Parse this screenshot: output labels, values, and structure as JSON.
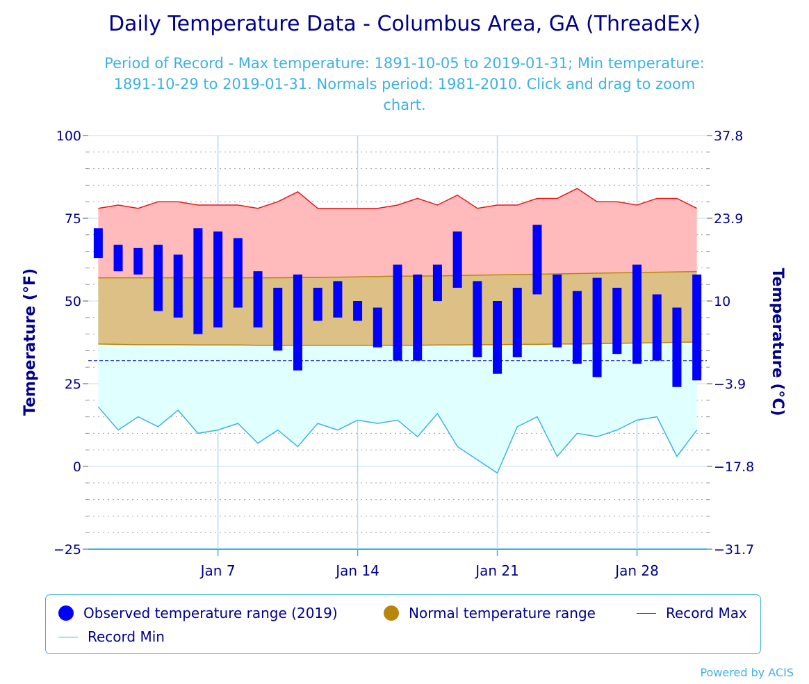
{
  "chart_data": {
    "type": "bar",
    "title": "Daily Temperature Data - Columbus Area, GA (ThreadEx)",
    "subtitle_lines": [
      "Period of Record - Max temperature: 1891-10-05 to 2019-01-31; Min temperature:",
      "1891-10-29 to 2019-01-31. Normals period: 1981-2010. Click and drag to zoom",
      "chart."
    ],
    "ylabel_left": "Temperature (°F)",
    "ylabel_right": "Temperature (°C)",
    "ylim": [
      -25,
      100
    ],
    "yticks_left": [
      100,
      75,
      50,
      25,
      0,
      -25
    ],
    "yticks_right_labels": [
      "37.8",
      "23.9",
      "10",
      "-3.9",
      "-17.8",
      "-31.7"
    ],
    "xlim_days": [
      0.5,
      31.5
    ],
    "x_ticks": [
      {
        "day": 7,
        "label": "Jan 7"
      },
      {
        "day": 14,
        "label": "Jan 14"
      },
      {
        "day": 21,
        "label": "Jan 21"
      },
      {
        "day": 28,
        "label": "Jan 28"
      }
    ],
    "freezing_line_f": 32,
    "grid": true,
    "legend_position": "bottom",
    "days": [
      1,
      2,
      3,
      4,
      5,
      6,
      7,
      8,
      9,
      10,
      11,
      12,
      13,
      14,
      15,
      16,
      17,
      18,
      19,
      20,
      21,
      22,
      23,
      24,
      25,
      26,
      27,
      28,
      29,
      30,
      31
    ],
    "record_max": [
      78,
      79,
      78,
      80,
      80,
      79,
      79,
      79,
      78,
      80,
      83,
      78,
      78,
      78,
      78,
      79,
      81,
      79,
      82,
      78,
      79,
      79,
      81,
      81,
      84,
      80,
      80,
      79,
      81,
      81,
      78
    ],
    "record_min": [
      18,
      11,
      15,
      12,
      17,
      10,
      11,
      13,
      7,
      11,
      6,
      13,
      11,
      14,
      13,
      14,
      9,
      16,
      6,
      2,
      -2,
      12,
      15,
      3,
      10,
      9,
      11,
      14,
      15,
      3,
      11
    ],
    "normal_max": [
      57,
      57,
      57,
      57,
      57,
      57,
      57,
      57,
      57,
      57,
      57.1,
      57.1,
      57.2,
      57.3,
      57.4,
      57.5,
      57.5,
      57.6,
      57.7,
      57.8,
      57.9,
      58,
      58.1,
      58.2,
      58.3,
      58.4,
      58.5,
      58.6,
      58.7,
      58.8,
      58.9
    ],
    "normal_min": [
      37,
      36.9,
      36.8,
      36.8,
      36.8,
      36.7,
      36.7,
      36.7,
      36.6,
      36.6,
      36.6,
      36.6,
      36.6,
      36.6,
      36.6,
      36.6,
      36.6,
      36.7,
      36.7,
      36.8,
      36.8,
      36.9,
      36.9,
      37,
      37,
      37.1,
      37.2,
      37.3,
      37.4,
      37.5,
      37.6
    ],
    "observed_max": [
      72,
      67,
      66,
      67,
      64,
      72,
      71,
      69,
      59,
      54,
      58,
      54,
      56,
      50,
      48,
      61,
      58,
      61,
      71,
      56,
      50,
      54,
      73,
      58,
      53,
      57,
      54,
      61,
      52,
      48,
      58
    ],
    "observed_min": [
      63,
      59,
      58,
      47,
      45,
      40,
      42,
      48,
      42,
      35,
      29,
      44,
      45,
      44,
      36,
      32,
      32,
      50,
      54,
      33,
      28,
      33,
      52,
      36,
      31,
      27,
      34,
      31,
      32,
      24,
      26
    ],
    "series": [
      {
        "name": "Observed temperature range (2019)",
        "color": "#0000ff"
      },
      {
        "name": "Normal temperature range",
        "color": "#b8860b"
      },
      {
        "name": "Record Max",
        "color": "#e31a1c"
      },
      {
        "name": "Record Min",
        "color": "#3eb1e3"
      }
    ]
  },
  "credit": "Powered by ACIS"
}
